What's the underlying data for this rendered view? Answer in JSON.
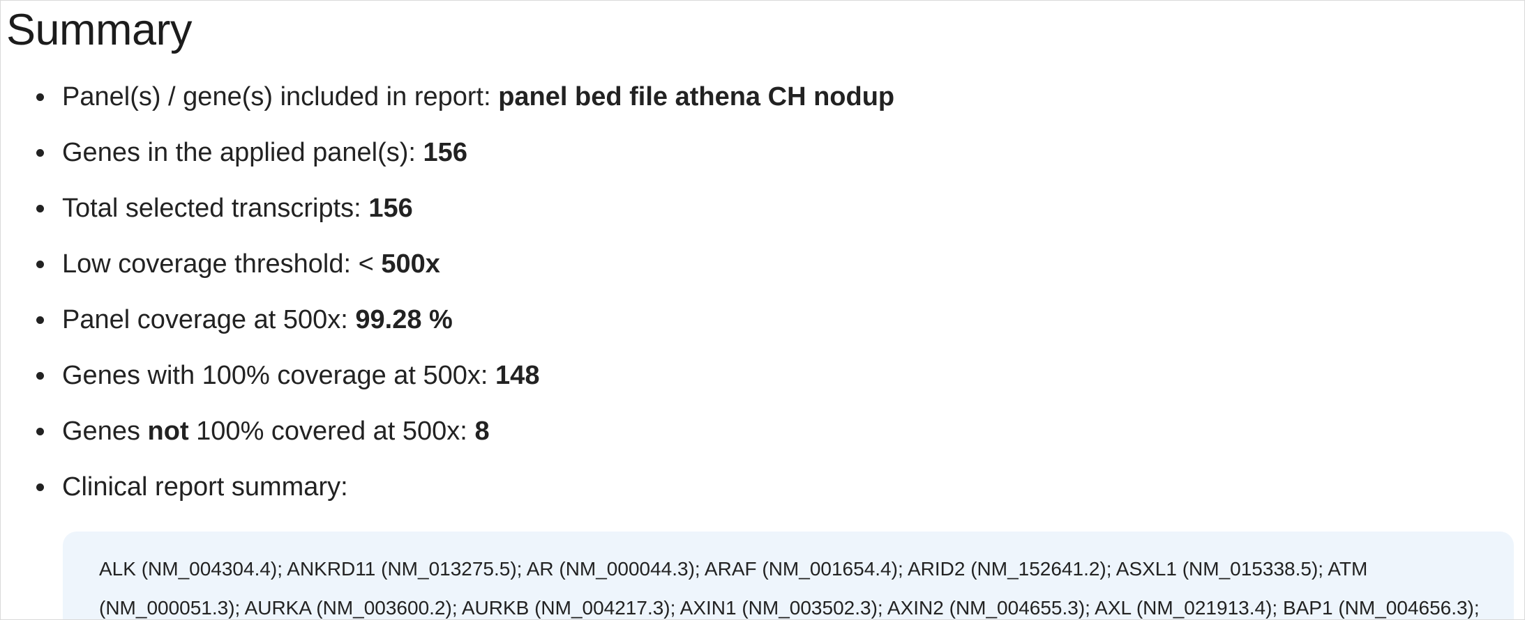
{
  "page": {
    "title": "Summary"
  },
  "summary_items": {
    "panels": {
      "label": "Panel(s) / gene(s) included in report: ",
      "value": "panel bed file athena CH nodup"
    },
    "genes_in_panel": {
      "label": "Genes in the applied panel(s): ",
      "value": "156"
    },
    "total_transcripts": {
      "label": "Total selected transcripts: ",
      "value": "156"
    },
    "low_coverage_threshold": {
      "label": "Low coverage threshold: < ",
      "value": "500x"
    },
    "panel_coverage": {
      "label": "Panel coverage at 500x: ",
      "value": "99.28 %"
    },
    "genes_full_coverage": {
      "label": "Genes with 100% coverage at 500x: ",
      "value": "148"
    },
    "genes_not_covered": {
      "label_prefix": "Genes ",
      "label_emphasis": "not",
      "label_suffix": " 100% covered at 500x: ",
      "value": "8"
    },
    "clinical_summary": {
      "label": "Clinical report summary:"
    }
  },
  "clinical_report": {
    "line1": "ALK (NM_004304.4); ANKRD11 (NM_013275.5); AR (NM_000044.3); ARAF (NM_001654.4); ARID2 (NM_152641.2); ASXL1 (NM_015338.5); ATM",
    "line2": "(NM_000051.3); AURKA (NM_003600.2); AURKB (NM_004217.3); AXIN1 (NM_003502.3); AXIN2 (NM_004655.3); AXL (NM_021913.4); BAP1 (NM_004656.3);"
  }
}
